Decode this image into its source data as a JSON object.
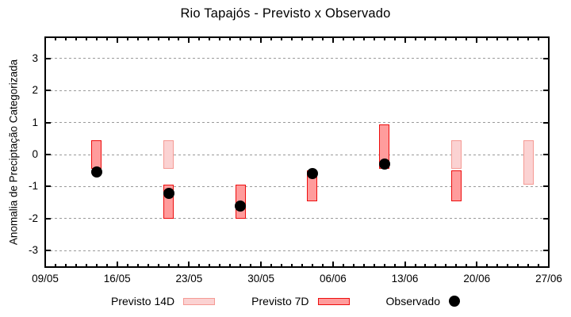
{
  "chart_data": {
    "type": "bar",
    "subtype": "weekly range bars with observed scatter overlay",
    "title": "Rio Tapajós - Previsto x Observado",
    "ylabel": "Anomalia de Preciptação Categorizada",
    "xlabel": "",
    "x_tick_labels": [
      "09/05",
      "16/05",
      "23/05",
      "30/05",
      "06/06",
      "13/06",
      "20/06",
      "27/06"
    ],
    "y_ticks": [
      3,
      2,
      1,
      0,
      -1,
      -2,
      -3
    ],
    "axis": {
      "days_span": 49,
      "minor_tick_every_days": 1,
      "major_tick_every_days": 7,
      "ymax": 3.66,
      "ymin": -3.51,
      "grid": "horizontal dotted at integer y values",
      "grid_color": "#9a9a9a",
      "axis_color": "#000000"
    },
    "legend_position": "bottom-center",
    "series": [
      {
        "name": "Previsto 14D",
        "kind": "range-bar",
        "fill": "#fbd2d2",
        "border": "#f59a94",
        "bars": [
          {
            "date": "21/05",
            "day": 12,
            "high": 0.45,
            "low": -0.45
          },
          {
            "date": "18/06",
            "day": 40,
            "high": 0.45,
            "low": -0.45
          },
          {
            "date": "25/06",
            "day": 47,
            "high": 0.45,
            "low": -0.95
          }
        ]
      },
      {
        "name": "Previsto 7D",
        "kind": "range-bar",
        "fill": "#ff9c9c",
        "border": "#ed0e0e",
        "bars": [
          {
            "date": "14/05",
            "day": 5,
            "high": 0.45,
            "low": -0.45
          },
          {
            "date": "21/05",
            "day": 12,
            "high": -0.95,
            "low": -2.0
          },
          {
            "date": "28/05",
            "day": 19,
            "high": -0.95,
            "low": -2.0
          },
          {
            "date": "04/06",
            "day": 26,
            "high": -0.5,
            "low": -1.45
          },
          {
            "date": "11/06",
            "day": 33,
            "high": 0.95,
            "low": -0.45
          },
          {
            "date": "18/06",
            "day": 40,
            "high": -0.5,
            "low": -1.45
          }
        ]
      },
      {
        "name": "Observado",
        "kind": "scatter",
        "color": "#000000",
        "points": [
          {
            "date": "14/05",
            "day": 5,
            "value": -0.55
          },
          {
            "date": "21/05",
            "day": 12,
            "value": -1.2
          },
          {
            "date": "28/05",
            "day": 19,
            "value": -1.6
          },
          {
            "date": "04/06",
            "day": 26,
            "value": -0.6
          },
          {
            "date": "11/06",
            "day": 33,
            "value": -0.3
          }
        ]
      }
    ]
  }
}
